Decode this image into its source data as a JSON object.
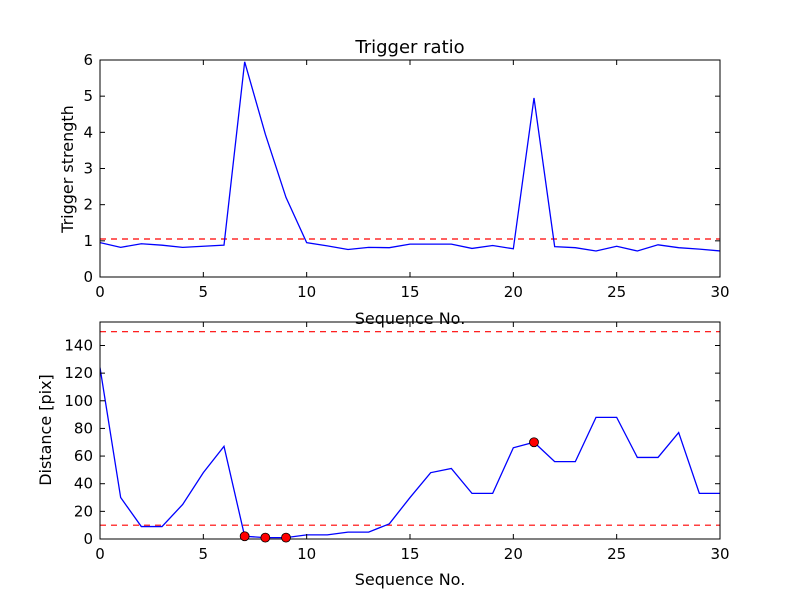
{
  "colors": {
    "line": "#0000ff",
    "threshold": "#ff0000",
    "marker": "#ff0000",
    "axes": "#000000",
    "background": "#ffffff"
  },
  "chart_data": [
    {
      "type": "line",
      "title": "Trigger ratio",
      "xlabel": "Sequence No.",
      "ylabel": "Trigger strength",
      "xlim": [
        0,
        30
      ],
      "ylim": [
        0,
        6
      ],
      "xticks": [
        0,
        5,
        10,
        15,
        20,
        25,
        30
      ],
      "yticks": [
        0,
        1,
        2,
        3,
        4,
        5,
        6
      ],
      "grid": false,
      "x": [
        0,
        1,
        2,
        3,
        4,
        5,
        6,
        7,
        8,
        9,
        10,
        11,
        12,
        13,
        14,
        15,
        16,
        17,
        18,
        19,
        20,
        21,
        22,
        23,
        24,
        25,
        26,
        27,
        28,
        29,
        30
      ],
      "series": [
        {
          "values": [
            0.95,
            0.82,
            0.92,
            0.88,
            0.82,
            0.85,
            0.88,
            5.95,
            3.95,
            2.2,
            0.95,
            0.86,
            0.76,
            0.82,
            0.81,
            0.91,
            0.91,
            0.91,
            0.79,
            0.87,
            0.78,
            4.95,
            0.84,
            0.81,
            0.72,
            0.85,
            0.72,
            0.89,
            0.81,
            0.77,
            0.72
          ]
        }
      ],
      "thresholds": [
        1.05
      ],
      "markers": []
    },
    {
      "type": "line",
      "title": "",
      "xlabel": "Sequence No.",
      "ylabel": "Distance [pix]",
      "xlim": [
        0,
        30
      ],
      "ylim": [
        0,
        157
      ],
      "xticks": [
        0,
        5,
        10,
        15,
        20,
        25,
        30
      ],
      "yticks": [
        0,
        20,
        40,
        60,
        80,
        100,
        120,
        140
      ],
      "grid": false,
      "x": [
        0,
        1,
        2,
        3,
        4,
        5,
        6,
        7,
        8,
        9,
        10,
        11,
        12,
        13,
        14,
        15,
        16,
        17,
        18,
        19,
        20,
        21,
        22,
        23,
        24,
        25,
        26,
        27,
        28,
        29,
        30
      ],
      "series": [
        {
          "values": [
            124,
            30,
            9,
            9,
            25,
            48,
            67,
            2,
            1,
            1,
            3,
            3,
            5,
            5,
            11,
            30,
            48,
            51,
            33,
            33,
            66,
            70,
            56,
            56,
            88,
            88,
            59,
            59,
            77,
            33,
            33
          ]
        }
      ],
      "thresholds": [
        150,
        10
      ],
      "markers": [
        {
          "x": 7,
          "y": 2
        },
        {
          "x": 8,
          "y": 1
        },
        {
          "x": 9,
          "y": 1
        },
        {
          "x": 21,
          "y": 70
        }
      ]
    }
  ]
}
